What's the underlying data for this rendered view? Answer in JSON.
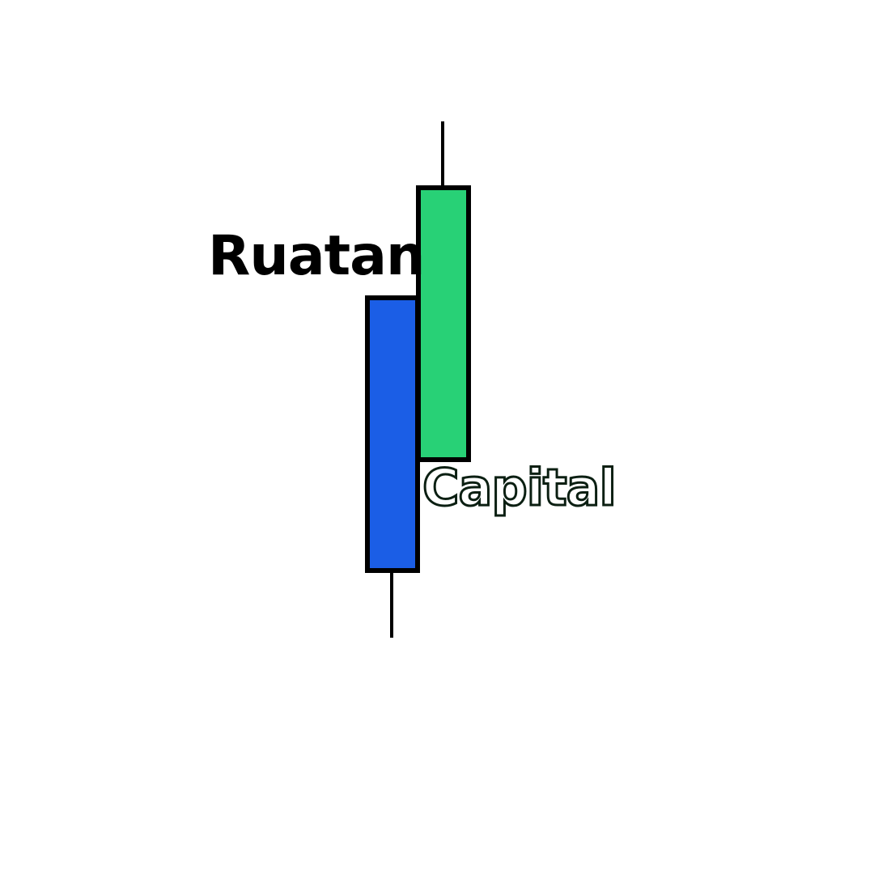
{
  "logo": {
    "word_primary": "Ruatan",
    "word_secondary": "Capital",
    "colors": {
      "background": "#ffffff",
      "bearish_candle": "#1b5ee6",
      "bullish_candle": "#28d176",
      "outline": "#000000",
      "word_primary": "#000000",
      "word_secondary_fill": "#ffffff",
      "word_secondary_outline": "#0b1f12"
    },
    "icons": [
      "blue-candlestick-icon",
      "green-candlestick-icon"
    ]
  }
}
